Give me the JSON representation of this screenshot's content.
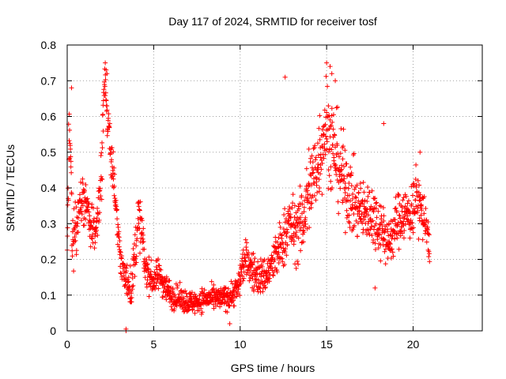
{
  "chart_data": {
    "type": "scatter",
    "title": "Day 117 of 2024, SRMTID for receiver tosf",
    "xlabel": "GPS time / hours",
    "ylabel": "SRMTID / TECUs",
    "xlim": [
      0,
      24
    ],
    "ylim": [
      0,
      0.8
    ],
    "xticks": [
      0,
      5,
      10,
      15,
      20
    ],
    "xtick_labels": [
      "0",
      "5",
      "10",
      "15",
      "20"
    ],
    "yticks": [
      0,
      0.1,
      0.2,
      0.3,
      0.4,
      0.5,
      0.6,
      0.7,
      0.8
    ],
    "ytick_labels": [
      "0",
      "0.1",
      "0.2",
      "0.3",
      "0.4",
      "0.5",
      "0.6",
      "0.7",
      "0.8"
    ],
    "grid": true,
    "marker": "+",
    "color": "#ff0000",
    "profile": {
      "x": [
        0,
        0.15,
        0.3,
        0.5,
        0.8,
        1.0,
        1.3,
        1.6,
        1.8,
        2.0,
        2.15,
        2.3,
        2.5,
        2.7,
        2.9,
        3.1,
        3.3,
        3.5,
        3.7,
        3.9,
        4.1,
        4.3,
        4.5,
        4.8,
        5.0,
        5.3,
        5.6,
        6.0,
        6.5,
        7.0,
        7.5,
        8.0,
        8.5,
        9.0,
        9.5,
        9.9,
        10.1,
        10.4,
        10.8,
        11.2,
        11.6,
        12.0,
        12.4,
        12.8,
        13.2,
        13.6,
        14.0,
        14.4,
        14.8,
        15.0,
        15.3,
        15.6,
        16.0,
        16.4,
        16.8,
        17.2,
        17.6,
        18.0,
        18.3,
        18.6,
        19.0,
        19.4,
        19.8,
        20.2,
        20.5,
        20.8,
        20.95
      ],
      "y": [
        0.3,
        0.55,
        0.25,
        0.3,
        0.35,
        0.38,
        0.3,
        0.28,
        0.32,
        0.45,
        0.7,
        0.62,
        0.52,
        0.42,
        0.3,
        0.2,
        0.15,
        0.14,
        0.12,
        0.2,
        0.32,
        0.28,
        0.18,
        0.15,
        0.14,
        0.16,
        0.13,
        0.1,
        0.09,
        0.08,
        0.08,
        0.09,
        0.09,
        0.09,
        0.1,
        0.12,
        0.18,
        0.2,
        0.16,
        0.15,
        0.16,
        0.2,
        0.24,
        0.3,
        0.28,
        0.3,
        0.4,
        0.45,
        0.55,
        0.58,
        0.52,
        0.48,
        0.42,
        0.38,
        0.34,
        0.33,
        0.33,
        0.3,
        0.28,
        0.24,
        0.3,
        0.33,
        0.32,
        0.38,
        0.33,
        0.3,
        0.2
      ],
      "spread": [
        0.09,
        0.12,
        0.08,
        0.08,
        0.06,
        0.07,
        0.05,
        0.05,
        0.07,
        0.07,
        0.06,
        0.06,
        0.06,
        0.06,
        0.06,
        0.05,
        0.04,
        0.05,
        0.05,
        0.07,
        0.07,
        0.06,
        0.05,
        0.04,
        0.04,
        0.04,
        0.04,
        0.035,
        0.03,
        0.03,
        0.03,
        0.03,
        0.03,
        0.03,
        0.035,
        0.04,
        0.05,
        0.05,
        0.05,
        0.05,
        0.05,
        0.06,
        0.07,
        0.08,
        0.08,
        0.1,
        0.12,
        0.12,
        0.13,
        0.13,
        0.13,
        0.12,
        0.11,
        0.1,
        0.08,
        0.08,
        0.08,
        0.08,
        0.07,
        0.07,
        0.07,
        0.07,
        0.07,
        0.08,
        0.07,
        0.06,
        0.05
      ]
    },
    "point_count": 1700,
    "highlights": [
      {
        "x": 2.2,
        "y": 0.75
      },
      {
        "x": 2.25,
        "y": 0.73
      },
      {
        "x": 2.3,
        "y": 0.72
      },
      {
        "x": 15.0,
        "y": 0.75
      },
      {
        "x": 15.2,
        "y": 0.74
      },
      {
        "x": 15.3,
        "y": 0.72
      },
      {
        "x": 15.5,
        "y": 0.7
      },
      {
        "x": 0.25,
        "y": 0.68
      },
      {
        "x": 12.6,
        "y": 0.71
      },
      {
        "x": 3.4,
        "y": 0.0
      },
      {
        "x": 3.4,
        "y": 0.005
      },
      {
        "x": 17.8,
        "y": 0.12
      },
      {
        "x": 9.4,
        "y": 0.02
      },
      {
        "x": 18.3,
        "y": 0.58
      },
      {
        "x": 20.4,
        "y": 0.5
      }
    ]
  }
}
